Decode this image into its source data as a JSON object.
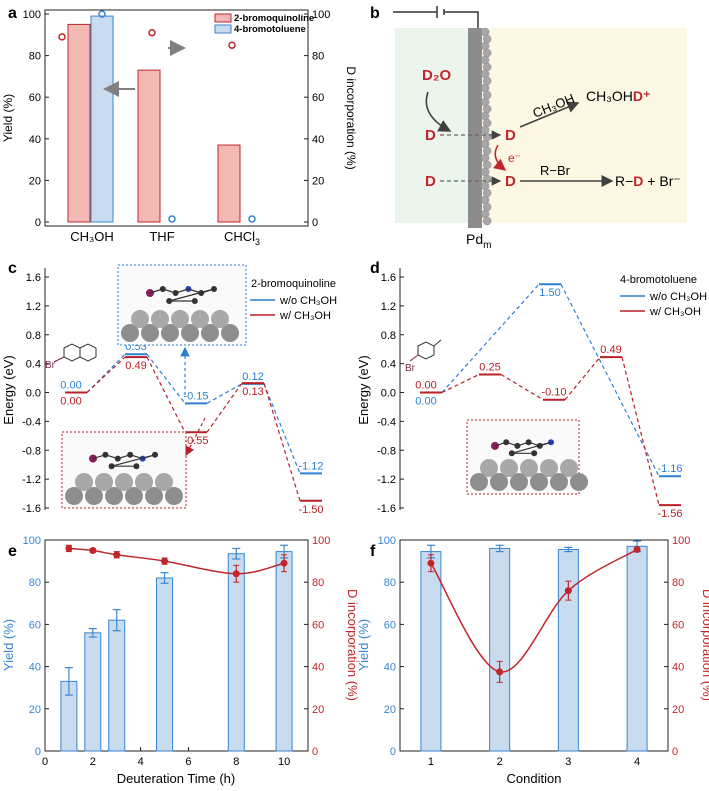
{
  "panels": {
    "a": "a",
    "b": "b",
    "c": "c",
    "d": "d",
    "e": "e",
    "f": "f"
  },
  "colors": {
    "red": "#c0262c",
    "red_fill": "#f2b9b5",
    "blue": "#3a86d0",
    "blue_fill": "#c9dbef",
    "dred": "#b72026",
    "dblue": "#2d7fd2"
  },
  "chart_data": [
    {
      "id": "a",
      "type": "bar",
      "categories": [
        "CH₃OH",
        "THF",
        "CHCl"
      ],
      "category_subscripts": [
        "",
        "",
        "3"
      ],
      "series": [
        {
          "name": "2-bromoquinoline",
          "values": [
            95,
            73,
            37
          ]
        },
        {
          "name": "4-bromotoluene",
          "values": [
            99,
            null,
            null
          ]
        }
      ],
      "d_incorporation": {
        "2-bromoquinoline": [
          89,
          91,
          85
        ],
        "4-bromotoluene": [
          99,
          0.5,
          0.5
        ]
      },
      "ylabel": "Yield (%)",
      "y2label": "D incorporation (%)",
      "ylim": [
        0,
        100
      ],
      "y2lim": [
        0,
        100
      ],
      "yticks": [
        "0",
        "20",
        "40",
        "60",
        "80",
        "100"
      ]
    },
    {
      "id": "c",
      "type": "line",
      "title": "2-bromoquinoline",
      "ylabel": "Energy (eV)",
      "ylim": [
        -1.6,
        1.6
      ],
      "yticks": [
        "1.6",
        "1.2",
        "0.8",
        "0.4",
        "0.0",
        "-0.4",
        "-0.8",
        "-1.2",
        "-1.6"
      ],
      "series": [
        {
          "name": "w/o CH₃OH",
          "values": [
            0.0,
            0.53,
            -0.15,
            0.12,
            -1.12
          ],
          "labels": [
            "0.00",
            "0.53",
            "-0.15",
            "0.12",
            "-1.12"
          ]
        },
        {
          "name": "w/ CH₃OH",
          "values": [
            0.0,
            0.49,
            -0.55,
            0.13,
            -1.5
          ],
          "labels": [
            "0.00",
            "0.49",
            "-0.55",
            "0.13",
            "-1.50"
          ]
        }
      ],
      "molecule_label": "Br"
    },
    {
      "id": "d",
      "type": "line",
      "title": "4-bromotoluene",
      "ylabel": "Energy (eV)",
      "ylim": [
        -1.6,
        1.6
      ],
      "yticks": [
        "1.6",
        "1.2",
        "0.8",
        "0.4",
        "0.0",
        "-0.4",
        "-0.8",
        "-1.2",
        "-1.6"
      ],
      "series": [
        {
          "name": "w/o CH₃OH",
          "values": [
            0.0,
            1.5,
            -1.16
          ],
          "labels": [
            "0.00",
            "1.50",
            "-1.16"
          ]
        },
        {
          "name": "w/ CH₃OH",
          "values": [
            0.0,
            0.25,
            -0.1,
            0.49,
            -1.56
          ],
          "labels": [
            "0.00",
            "0.25",
            "-0.10",
            "0.49",
            "-1.56"
          ]
        }
      ],
      "molecule_label": "Br"
    },
    {
      "id": "e",
      "type": "bar",
      "x": [
        1,
        2,
        3,
        5,
        8,
        10
      ],
      "yield": [
        33,
        56,
        62,
        82,
        93.5,
        94.5
      ],
      "yield_err": [
        6.5,
        2,
        5,
        2.5,
        2.5,
        3
      ],
      "d_incorporation": [
        96,
        95,
        93,
        90,
        84,
        89
      ],
      "d_err": [
        1.5,
        1,
        1.5,
        1.5,
        4,
        4
      ],
      "xlabel": "Deuteration Time (h)",
      "ylabel": "Yield (%)",
      "y2label": "D incorporation (%)",
      "xlim": [
        0,
        11
      ],
      "ylim": [
        0,
        100
      ],
      "xticks": [
        "0",
        "2",
        "4",
        "6",
        "8",
        "10"
      ],
      "yticks": [
        "0",
        "20",
        "40",
        "60",
        "80",
        "100"
      ]
    },
    {
      "id": "f",
      "type": "bar",
      "x": [
        1,
        2,
        3,
        4
      ],
      "yield": [
        94.5,
        96,
        95.5,
        97
      ],
      "yield_err": [
        3,
        1.5,
        1,
        2.5
      ],
      "d_incorporation": [
        89,
        37.5,
        76,
        95.5
      ],
      "d_err": [
        4,
        5,
        4.5,
        1
      ],
      "xlabel": "Condition",
      "ylabel": "Yield (%)",
      "y2label": "D incorporation (%)",
      "ylim": [
        0,
        100
      ],
      "xticks": [
        "1",
        "2",
        "3",
        "4"
      ],
      "yticks": [
        "0",
        "20",
        "40",
        "60",
        "80",
        "100"
      ]
    }
  ],
  "scheme_b": {
    "d2o": "D₂O",
    "d": "D",
    "ch3oh": "CH₃OH",
    "ch3ohd_base": "CH₃OH",
    "ch3ohd_d": "D⁺",
    "e_minus": "e⁻",
    "r_br": "R−Br",
    "product_r": "R−",
    "product_d": "D",
    "product_rest": " + Br⁻",
    "electrode": "Pd",
    "electrode_sub": "m"
  }
}
